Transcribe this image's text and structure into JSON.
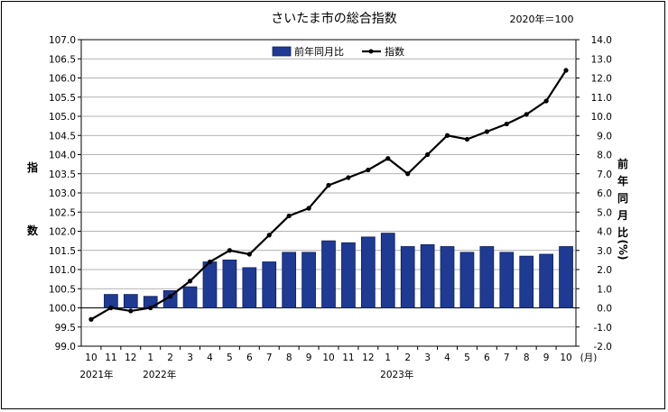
{
  "chart_data": {
    "type": "bar+line",
    "title": "さいたま市の総合指数",
    "base_note": "2020年＝100",
    "x_categories": [
      "10",
      "11",
      "12",
      "1",
      "2",
      "3",
      "4",
      "5",
      "6",
      "7",
      "8",
      "9",
      "10",
      "11",
      "12",
      "1",
      "2",
      "3",
      "4",
      "5",
      "6",
      "7",
      "8",
      "9",
      "10"
    ],
    "x_unit": "(月)",
    "year_labels": [
      {
        "text": "2021年",
        "index": 0
      },
      {
        "text": "2022年",
        "index": 3
      },
      {
        "text": "2023年",
        "index": 15
      }
    ],
    "left_axis": {
      "label_chars": [
        "指",
        "数"
      ],
      "range": [
        99.0,
        107.0
      ],
      "step": 0.5,
      "tick_labels": [
        "99.0",
        "99.5",
        "100.0",
        "100.5",
        "101.0",
        "101.5",
        "102.0",
        "102.5",
        "103.0",
        "103.5",
        "104.0",
        "104.5",
        "105.0",
        "105.5",
        "106.0",
        "106.5",
        "107.0"
      ]
    },
    "right_axis": {
      "label_chars": [
        "前",
        "年",
        "同",
        "月",
        "比",
        "(%)"
      ],
      "range": [
        -2.0,
        14.0
      ],
      "step": 1.0,
      "tick_labels": [
        "-2.0",
        "-1.0",
        "0.0",
        "1.0",
        "2.0",
        "3.0",
        "4.0",
        "5.0",
        "6.0",
        "7.0",
        "8.0",
        "9.0",
        "10.0",
        "11.0",
        "12.0",
        "13.0",
        "14.0"
      ]
    },
    "grid": true,
    "legend_position": "top-center",
    "series": [
      {
        "name": "前年同月比",
        "type": "bar",
        "axis": "right",
        "color": "#1f3a93",
        "values": [
          null,
          0.7,
          0.7,
          0.6,
          0.9,
          1.1,
          2.4,
          2.5,
          2.1,
          2.4,
          2.9,
          2.9,
          3.5,
          3.4,
          3.7,
          3.9,
          3.2,
          3.3,
          3.2,
          2.9,
          3.2,
          2.9,
          2.7,
          2.8,
          3.2
        ]
      },
      {
        "name": "指数",
        "type": "line",
        "axis": "left",
        "color": "#000000",
        "values": [
          99.7,
          100.0,
          99.92,
          100.0,
          100.3,
          100.7,
          101.2,
          101.5,
          101.4,
          101.9,
          102.4,
          102.6,
          103.2,
          103.4,
          103.6,
          103.9,
          103.5,
          104.0,
          104.5,
          104.4,
          104.6,
          104.8,
          105.05,
          105.4,
          106.2
        ]
      }
    ]
  }
}
